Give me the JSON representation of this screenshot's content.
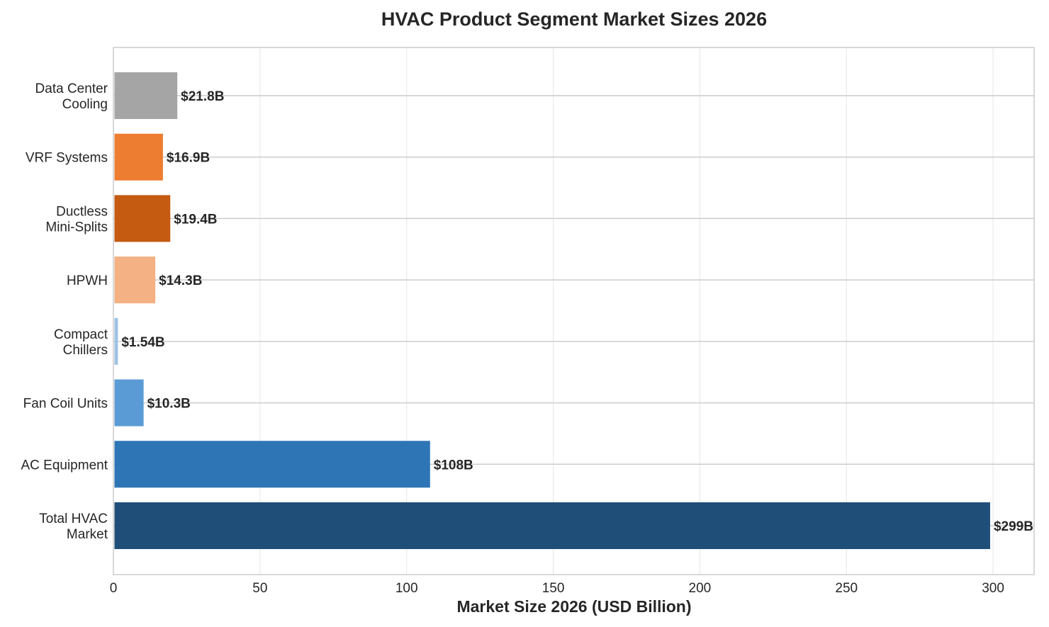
{
  "chart_data": {
    "type": "bar",
    "orientation": "horizontal",
    "title": "HVAC Product Segment Market Sizes 2026",
    "xlabel": "Market Size 2026 (USD Billion)",
    "ylabel": "",
    "xlim": [
      0,
      314
    ],
    "xticks": [
      0,
      50,
      100,
      150,
      200,
      250,
      300
    ],
    "xtick_labels": [
      "0",
      "50",
      "100",
      "150",
      "200",
      "250",
      "300"
    ],
    "grid": true,
    "categories": [
      "Total HVAC\nMarket",
      "AC Equipment",
      "Fan Coil Units",
      "Compact\nChillers",
      "HPWH",
      "Ductless\nMini-Splits",
      "VRF Systems",
      "Data Center\nCooling"
    ],
    "values": [
      299,
      108,
      10.3,
      1.54,
      14.3,
      19.4,
      16.9,
      21.8
    ],
    "data_labels": [
      "$299B",
      "$108B",
      "$10.3B",
      "$1.54B",
      "$14.3B",
      "$19.4B",
      "$16.9B",
      "$21.8B"
    ],
    "colors": [
      "#1f4e79",
      "#2e75b6",
      "#5b9bd5",
      "#9dc3e6",
      "#f4b183",
      "#c55a11",
      "#ed7d31",
      "#a5a5a5"
    ]
  }
}
